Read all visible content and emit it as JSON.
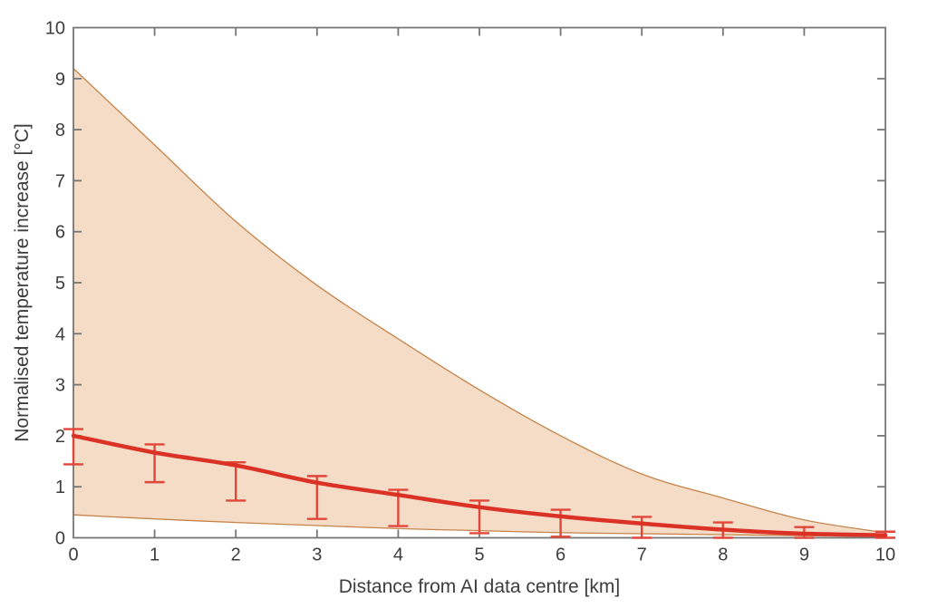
{
  "chart_data": {
    "type": "line",
    "title": "",
    "xlabel": "Distance from AI data centre [km]",
    "ylabel": "Normalised temperature increase [°C]",
    "xlim": [
      0,
      10
    ],
    "ylim": [
      0,
      10
    ],
    "x_ticks": [
      0,
      1,
      2,
      3,
      4,
      5,
      6,
      7,
      8,
      9,
      10
    ],
    "y_ticks": [
      0,
      1,
      2,
      3,
      4,
      5,
      6,
      7,
      8,
      9,
      10
    ],
    "grid": false,
    "legend": "none",
    "x": [
      0,
      1,
      2,
      3,
      4,
      5,
      6,
      7,
      8,
      9,
      10
    ],
    "line": {
      "values": [
        2.0,
        1.67,
        1.42,
        1.08,
        0.84,
        0.6,
        0.42,
        0.28,
        0.16,
        0.08,
        0.05
      ],
      "color": "#dc3226",
      "width": 4.5
    },
    "band": {
      "upper": [
        9.2,
        7.7,
        6.2,
        4.95,
        3.9,
        2.9,
        2.0,
        1.25,
        0.78,
        0.35,
        0.1
      ],
      "lower": [
        0.45,
        0.37,
        0.3,
        0.24,
        0.18,
        0.14,
        0.1,
        0.08,
        0.06,
        0.04,
        0.02
      ],
      "fill": "#f4dcc6",
      "edge": "#c5834a",
      "edge_width": 1.3
    },
    "error_bars": {
      "x": [
        0,
        1,
        2,
        3,
        4,
        5,
        6,
        7,
        8,
        9,
        10
      ],
      "high": [
        2.13,
        1.83,
        1.48,
        1.21,
        0.94,
        0.73,
        0.55,
        0.41,
        0.3,
        0.21,
        0.12
      ],
      "low": [
        1.44,
        1.09,
        0.73,
        0.37,
        0.23,
        0.09,
        0.02,
        0,
        0,
        0,
        0
      ],
      "color": "#e1463a",
      "cap_width": 22,
      "line_width": 2.4
    }
  },
  "style": {
    "axis_color": "#767676",
    "axis_width": 1.8,
    "tick_length": 9,
    "tick_label_color": "#3d3d3d",
    "tick_font_size": 20,
    "background": "#ffffff"
  }
}
